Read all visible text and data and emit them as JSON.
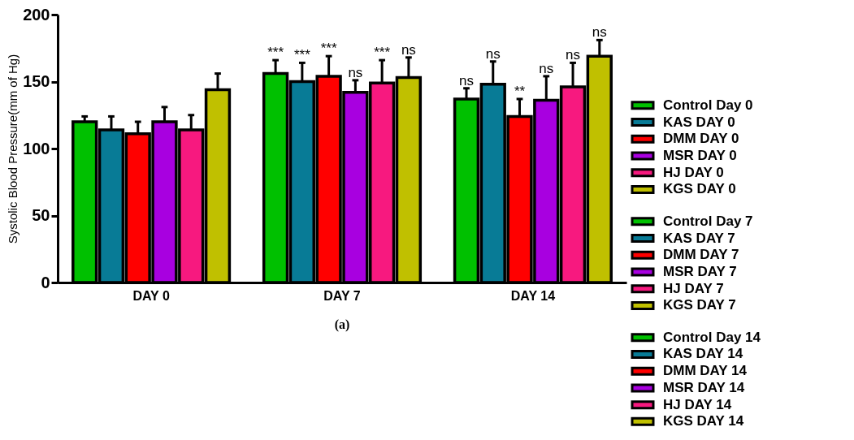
{
  "chart_data": {
    "type": "bar",
    "ylabel": "Systolic Blood Pressure(mm of Hg)",
    "categories": [
      "DAY 0",
      "DAY 7",
      "DAY 14"
    ],
    "ylim": [
      0,
      200
    ],
    "yticks": [
      0,
      50,
      100,
      150,
      200
    ],
    "grid": false,
    "legend": "right",
    "series": [
      {
        "name": "Control Day 0",
        "color": "#00c000",
        "values": [
          120,
          null,
          null
        ],
        "errors": [
          4,
          null,
          null
        ]
      },
      {
        "name": "KAS DAY 0",
        "color": "#087b96",
        "values": [
          114,
          null,
          null
        ],
        "errors": [
          10,
          null,
          null
        ]
      },
      {
        "name": "DMM DAY 0",
        "color": "#ff0000",
        "values": [
          111,
          null,
          null
        ],
        "errors": [
          9,
          null,
          null
        ]
      },
      {
        "name": "MSR DAY 0",
        "color": "#a800e0",
        "values": [
          120,
          null,
          null
        ],
        "errors": [
          11,
          null,
          null
        ]
      },
      {
        "name": "HJ DAY 0",
        "color": "#f7197f",
        "values": [
          114,
          null,
          null
        ],
        "errors": [
          11,
          null,
          null
        ]
      },
      {
        "name": "KGS DAY 0",
        "color": "#c0c000",
        "values": [
          144,
          null,
          null
        ],
        "errors": [
          12,
          null,
          null
        ]
      },
      {
        "name": "Control Day 7",
        "color": "#00c000",
        "values": [
          null,
          156,
          null
        ],
        "errors": [
          null,
          10,
          null
        ],
        "value_labels": [
          null,
          "***",
          null
        ]
      },
      {
        "name": "KAS DAY 7",
        "color": "#087b96",
        "values": [
          null,
          150,
          null
        ],
        "errors": [
          null,
          14,
          null
        ],
        "value_labels": [
          null,
          "***",
          null
        ]
      },
      {
        "name": "DMM DAY 7",
        "color": "#ff0000",
        "values": [
          null,
          154,
          null
        ],
        "errors": [
          null,
          15,
          null
        ],
        "value_labels": [
          null,
          "***",
          null
        ]
      },
      {
        "name": "MSR DAY 7",
        "color": "#a800e0",
        "values": [
          null,
          142,
          null
        ],
        "errors": [
          null,
          9,
          null
        ],
        "value_labels": [
          null,
          "ns",
          null
        ]
      },
      {
        "name": "HJ DAY 7",
        "color": "#f7197f",
        "values": [
          null,
          149,
          null
        ],
        "errors": [
          null,
          17,
          null
        ],
        "value_labels": [
          null,
          "***",
          null
        ]
      },
      {
        "name": "KGS DAY 7",
        "color": "#c0c000",
        "values": [
          null,
          153,
          null
        ],
        "errors": [
          null,
          15,
          null
        ],
        "value_labels": [
          null,
          "ns",
          null
        ]
      },
      {
        "name": "Control Day 14",
        "color": "#00c000",
        "values": [
          null,
          null,
          137
        ],
        "errors": [
          null,
          null,
          8
        ],
        "value_labels": [
          null,
          null,
          "ns"
        ]
      },
      {
        "name": "KAS DAY 14",
        "color": "#087b96",
        "values": [
          null,
          null,
          148
        ],
        "errors": [
          null,
          null,
          17
        ],
        "value_labels": [
          null,
          null,
          "ns"
        ]
      },
      {
        "name": "DMM DAY 14",
        "color": "#ff0000",
        "values": [
          null,
          null,
          124
        ],
        "errors": [
          null,
          null,
          13
        ],
        "value_labels": [
          null,
          null,
          "**"
        ]
      },
      {
        "name": "MSR DAY 14",
        "color": "#a800e0",
        "values": [
          null,
          null,
          136
        ],
        "errors": [
          null,
          null,
          18
        ],
        "value_labels": [
          null,
          null,
          "ns"
        ]
      },
      {
        "name": "HJ DAY 14",
        "color": "#f7197f",
        "values": [
          null,
          null,
          146
        ],
        "errors": [
          null,
          null,
          18
        ],
        "value_labels": [
          null,
          null,
          "ns"
        ]
      },
      {
        "name": "KGS DAY 14",
        "color": "#c0c000",
        "values": [
          null,
          null,
          169
        ],
        "errors": [
          null,
          null,
          12
        ],
        "value_labels": [
          null,
          null,
          "ns"
        ]
      }
    ],
    "annotations": [
      "(a)"
    ]
  }
}
